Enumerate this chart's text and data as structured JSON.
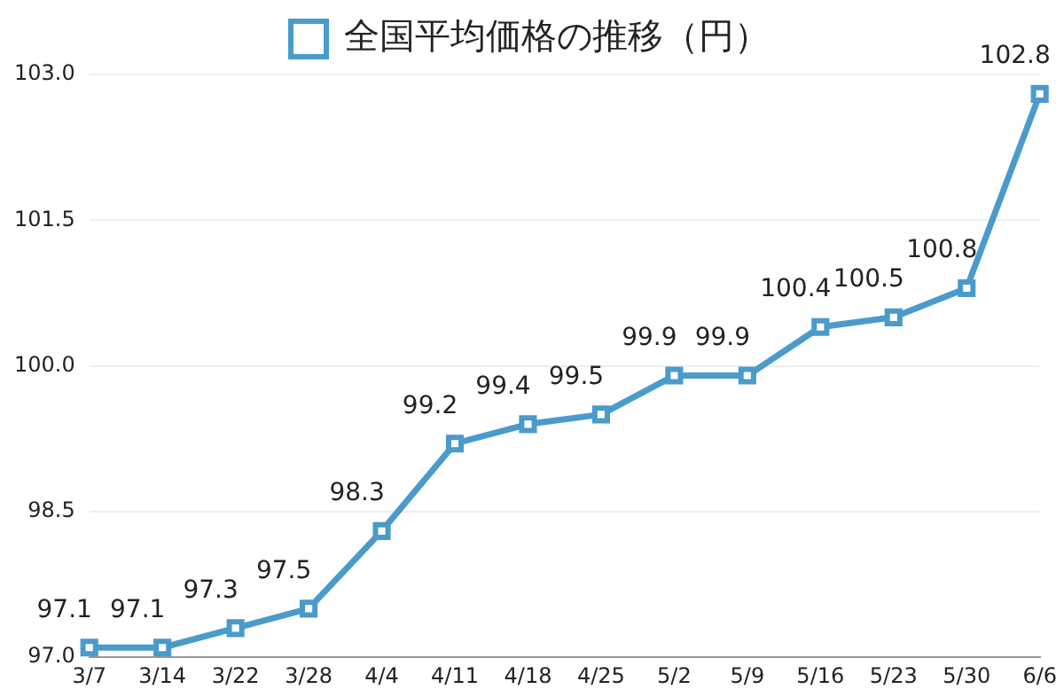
{
  "chart_data": {
    "type": "line",
    "categories": [
      "3/7",
      "3/14",
      "3/22",
      "3/28",
      "4/4",
      "4/11",
      "4/18",
      "4/25",
      "5/2",
      "5/9",
      "5/16",
      "5/23",
      "5/30",
      "6/6"
    ],
    "series": [
      {
        "name": "全国平均価格の推移（円）",
        "color": "#4a9bcb",
        "values": [
          97.1,
          97.1,
          97.3,
          97.5,
          98.3,
          99.2,
          99.4,
          99.5,
          99.9,
          99.9,
          100.4,
          100.5,
          100.8,
          102.8
        ]
      }
    ],
    "ylim": [
      97.0,
      103.0
    ],
    "yticks": [
      {
        "value": 97.0,
        "label": "97.0"
      },
      {
        "value": 98.5,
        "label": "98.5"
      },
      {
        "value": 100.0,
        "label": "100.0"
      },
      {
        "value": 101.5,
        "label": "101.5"
      },
      {
        "value": 103.0,
        "label": "103.0"
      }
    ],
    "grid": "y",
    "legend": "top",
    "marker": "square",
    "line_style": "solid",
    "data_labels": true
  }
}
